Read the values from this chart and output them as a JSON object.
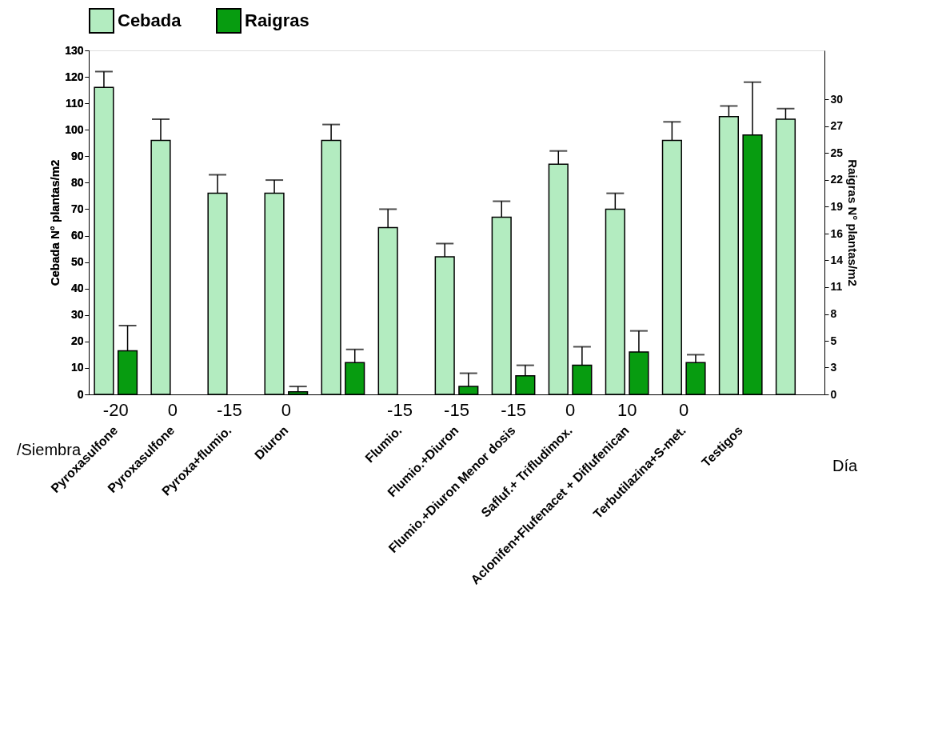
{
  "chart_data": {
    "type": "bar",
    "ylabel": "Cebada N° plantas/m2",
    "y2label": "Raigras N° plantas/m2",
    "categories": [
      "Pyroxasulfone",
      "Pyroxasulfone",
      "Pyroxa+flumio.",
      "Diuron",
      null,
      "Flumio.",
      "Flumio.+Diuron",
      "Flumio.+Diuron Menor dosis",
      "Safluf.+ Trifludimox.",
      "Aclonifen+Flufenacet + Diflufenican",
      "Terbutilazina+S-met.",
      "Testigos",
      null
    ],
    "series": [
      {
        "name": "Cebada",
        "color": "#b3ecc0",
        "values": [
          116,
          96,
          76,
          76,
          96,
          63,
          52,
          67,
          87,
          70,
          96,
          105,
          104
        ],
        "errors": [
          [
            116,
            122
          ],
          [
            96,
            104
          ],
          [
            76,
            83
          ],
          [
            76,
            81
          ],
          [
            96,
            102
          ],
          [
            63,
            70
          ],
          [
            52,
            57
          ],
          [
            67,
            73
          ],
          [
            87,
            92
          ],
          [
            70,
            76
          ],
          [
            96,
            103
          ],
          [
            105,
            109
          ],
          [
            104,
            108
          ]
        ]
      },
      {
        "name": "Raigras",
        "color": "#079c10",
        "values": [
          16.5,
          null,
          null,
          1,
          12,
          null,
          3,
          7,
          11,
          16,
          12,
          98,
          null
        ],
        "errors": [
          [
            16.5,
            26
          ],
          null,
          null,
          [
            1,
            3
          ],
          [
            12,
            17
          ],
          null,
          [
            3,
            8
          ],
          [
            7,
            11
          ],
          [
            11,
            18
          ],
          [
            16,
            24
          ],
          [
            12,
            15
          ],
          [
            98,
            118
          ],
          null
        ]
      }
    ],
    "ylim": [
      0,
      130
    ],
    "yticks": [
      0,
      10,
      20,
      30,
      40,
      50,
      60,
      70,
      80,
      90,
      100,
      110,
      120,
      130
    ],
    "y2lim": [
      0,
      35
    ],
    "y2ticks": [
      0,
      {
        "value": 2.73,
        "label": "3"
      },
      {
        "value": 5.45,
        "label": "5"
      },
      {
        "value": 8.18,
        "label": "8"
      },
      {
        "value": 10.91,
        "label": "11"
      },
      {
        "value": 13.64,
        "label": "14"
      },
      {
        "value": 16.36,
        "label": "16"
      },
      {
        "value": 19.09,
        "label": "19"
      },
      {
        "value": 21.82,
        "label": "22"
      },
      {
        "value": 24.55,
        "label": "25"
      },
      {
        "value": 27.27,
        "label": "27"
      },
      30
    ],
    "annotations": [
      "/Siembra",
      "-20",
      "0",
      "-15",
      "0",
      "-15",
      "-15",
      "-15",
      "0",
      "10",
      "0",
      "Día"
    ],
    "legend": "top",
    "grid": false
  }
}
